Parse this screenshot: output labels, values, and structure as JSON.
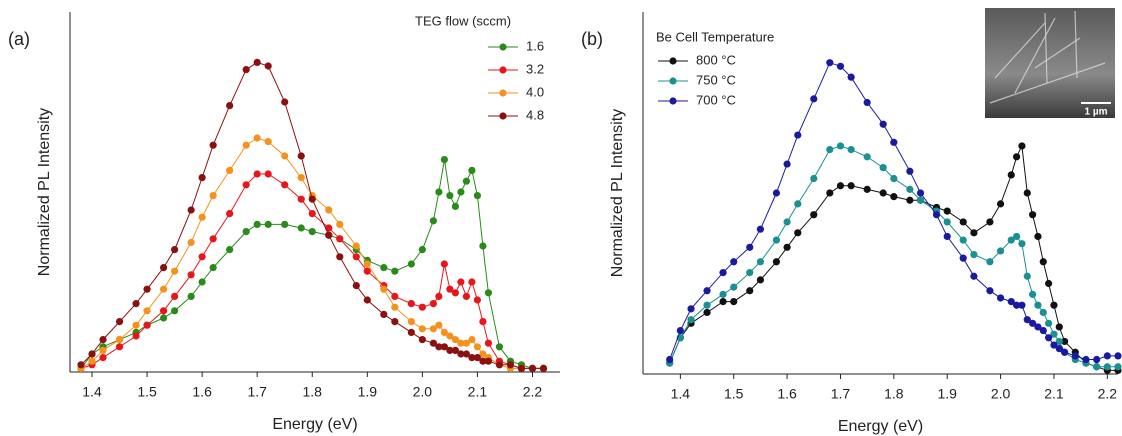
{
  "chart_data": [
    {
      "type": "line",
      "panel_label": "(a)",
      "xlabel": "Energy (eV)",
      "ylabel": "Normalized PL Intensity",
      "legend_title": "TEG flow (sccm)",
      "legend": "upper right",
      "markers": true,
      "xlim": [
        1.36,
        2.25
      ],
      "ylim": [
        0,
        1
      ],
      "xticks": [
        1.4,
        1.5,
        1.6,
        1.7,
        1.8,
        1.9,
        {
          "value": 2,
          "label": "2.0"
        },
        2.1,
        2.2
      ],
      "x": [
        1.38,
        1.4,
        1.42,
        1.45,
        1.48,
        1.5,
        1.53,
        1.55,
        1.58,
        1.6,
        1.62,
        1.65,
        1.68,
        1.7,
        1.72,
        1.75,
        1.78,
        1.8,
        1.83,
        1.85,
        1.88,
        1.9,
        1.93,
        1.95,
        1.98,
        2.0,
        2.02,
        2.03,
        2.04,
        2.05,
        2.06,
        2.07,
        2.08,
        2.09,
        2.1,
        2.11,
        2.12,
        2.14,
        2.16,
        2.18,
        2.2,
        2.22
      ],
      "series": [
        {
          "name": "1.6",
          "color": "#2a8a1a",
          "values": [
            0.01,
            0.05,
            0.07,
            0.09,
            0.11,
            0.13,
            0.15,
            0.17,
            0.21,
            0.25,
            0.29,
            0.34,
            0.39,
            0.41,
            0.41,
            0.41,
            0.4,
            0.39,
            0.38,
            0.37,
            0.34,
            0.31,
            0.29,
            0.28,
            0.3,
            0.34,
            0.42,
            0.5,
            0.59,
            0.49,
            0.46,
            0.5,
            0.53,
            0.56,
            0.49,
            0.35,
            0.22,
            0.07,
            0.03,
            0.02,
            0.01,
            0.01
          ]
        },
        {
          "name": "3.2",
          "color": "#e8161a",
          "values": [
            0.01,
            0.02,
            0.04,
            0.07,
            0.1,
            0.13,
            0.17,
            0.21,
            0.27,
            0.32,
            0.37,
            0.44,
            0.52,
            0.55,
            0.55,
            0.52,
            0.48,
            0.44,
            0.4,
            0.37,
            0.32,
            0.28,
            0.24,
            0.21,
            0.19,
            0.18,
            0.19,
            0.21,
            0.3,
            0.23,
            0.22,
            0.25,
            0.21,
            0.25,
            0.2,
            0.14,
            0.08,
            0.03,
            0.02,
            0.01,
            0.01,
            0.01
          ]
        },
        {
          "name": "4.0",
          "color": "#f5921e",
          "values": [
            0.01,
            0.03,
            0.06,
            0.09,
            0.13,
            0.17,
            0.23,
            0.28,
            0.36,
            0.43,
            0.49,
            0.56,
            0.63,
            0.65,
            0.64,
            0.6,
            0.54,
            0.49,
            0.45,
            0.41,
            0.35,
            0.3,
            0.23,
            0.18,
            0.14,
            0.12,
            0.12,
            0.13,
            0.11,
            0.1,
            0.09,
            0.08,
            0.08,
            0.09,
            0.07,
            0.05,
            0.04,
            0.02,
            0.01,
            0.01,
            0.01,
            0.01
          ]
        },
        {
          "name": "4.8",
          "color": "#8b1010",
          "values": [
            0.02,
            0.05,
            0.09,
            0.14,
            0.19,
            0.23,
            0.29,
            0.34,
            0.45,
            0.54,
            0.63,
            0.74,
            0.84,
            0.86,
            0.85,
            0.75,
            0.6,
            0.48,
            0.38,
            0.32,
            0.24,
            0.2,
            0.16,
            0.14,
            0.11,
            0.09,
            0.08,
            0.07,
            0.07,
            0.06,
            0.06,
            0.05,
            0.05,
            0.04,
            0.04,
            0.03,
            0.03,
            0.02,
            0.02,
            0.01,
            0.01,
            0.01
          ]
        }
      ]
    },
    {
      "type": "line",
      "panel_label": "(b)",
      "xlabel": "Energy (eV)",
      "ylabel": "Normalized PL Intensity",
      "legend_title": "Be Cell Temperature",
      "legend": "upper left",
      "markers": true,
      "inset_scale_label": "1 µm",
      "xlim": [
        1.33,
        2.22
      ],
      "ylim": [
        0,
        1
      ],
      "xticks": [
        1.4,
        1.5,
        1.6,
        1.7,
        1.8,
        1.9,
        {
          "value": 2,
          "label": "2.0"
        },
        2.1,
        2.2
      ],
      "x": [
        1.38,
        1.4,
        1.42,
        1.45,
        1.48,
        1.5,
        1.53,
        1.55,
        1.58,
        1.6,
        1.62,
        1.65,
        1.68,
        1.7,
        1.72,
        1.75,
        1.78,
        1.8,
        1.83,
        1.85,
        1.88,
        1.9,
        1.93,
        1.95,
        1.98,
        2.0,
        2.02,
        2.03,
        2.04,
        2.05,
        2.06,
        2.07,
        2.08,
        2.09,
        2.1,
        2.11,
        2.12,
        2.14,
        2.16,
        2.18,
        2.2,
        2.22
      ],
      "series": [
        {
          "name": "800 °C",
          "color": "#111111",
          "values": [
            0.03,
            0.1,
            0.14,
            0.17,
            0.2,
            0.2,
            0.23,
            0.26,
            0.31,
            0.35,
            0.39,
            0.44,
            0.5,
            0.52,
            0.52,
            0.51,
            0.5,
            0.49,
            0.48,
            0.48,
            0.46,
            0.45,
            0.42,
            0.39,
            0.42,
            0.47,
            0.55,
            0.6,
            0.63,
            0.5,
            0.44,
            0.38,
            0.31,
            0.25,
            0.19,
            0.13,
            0.09,
            0.06,
            0.03,
            0.02,
            0.01,
            0.01
          ]
        },
        {
          "name": "750 °C",
          "color": "#1a9090",
          "values": [
            0.03,
            0.1,
            0.15,
            0.19,
            0.22,
            0.24,
            0.28,
            0.31,
            0.37,
            0.42,
            0.47,
            0.54,
            0.62,
            0.63,
            0.62,
            0.6,
            0.57,
            0.54,
            0.51,
            0.48,
            0.45,
            0.42,
            0.37,
            0.33,
            0.31,
            0.34,
            0.37,
            0.38,
            0.36,
            0.27,
            0.22,
            0.19,
            0.17,
            0.14,
            0.11,
            0.09,
            0.06,
            0.04,
            0.03,
            0.02,
            0.02,
            0.02
          ]
        },
        {
          "name": "700 °C",
          "color": "#1a1aa0",
          "values": [
            0.04,
            0.12,
            0.18,
            0.23,
            0.28,
            0.31,
            0.35,
            0.4,
            0.5,
            0.58,
            0.66,
            0.76,
            0.86,
            0.85,
            0.82,
            0.75,
            0.69,
            0.64,
            0.56,
            0.5,
            0.44,
            0.38,
            0.32,
            0.27,
            0.23,
            0.21,
            0.2,
            0.19,
            0.19,
            0.15,
            0.14,
            0.13,
            0.12,
            0.1,
            0.08,
            0.07,
            0.06,
            0.05,
            0.04,
            0.04,
            0.05,
            0.05
          ]
        }
      ]
    }
  ]
}
